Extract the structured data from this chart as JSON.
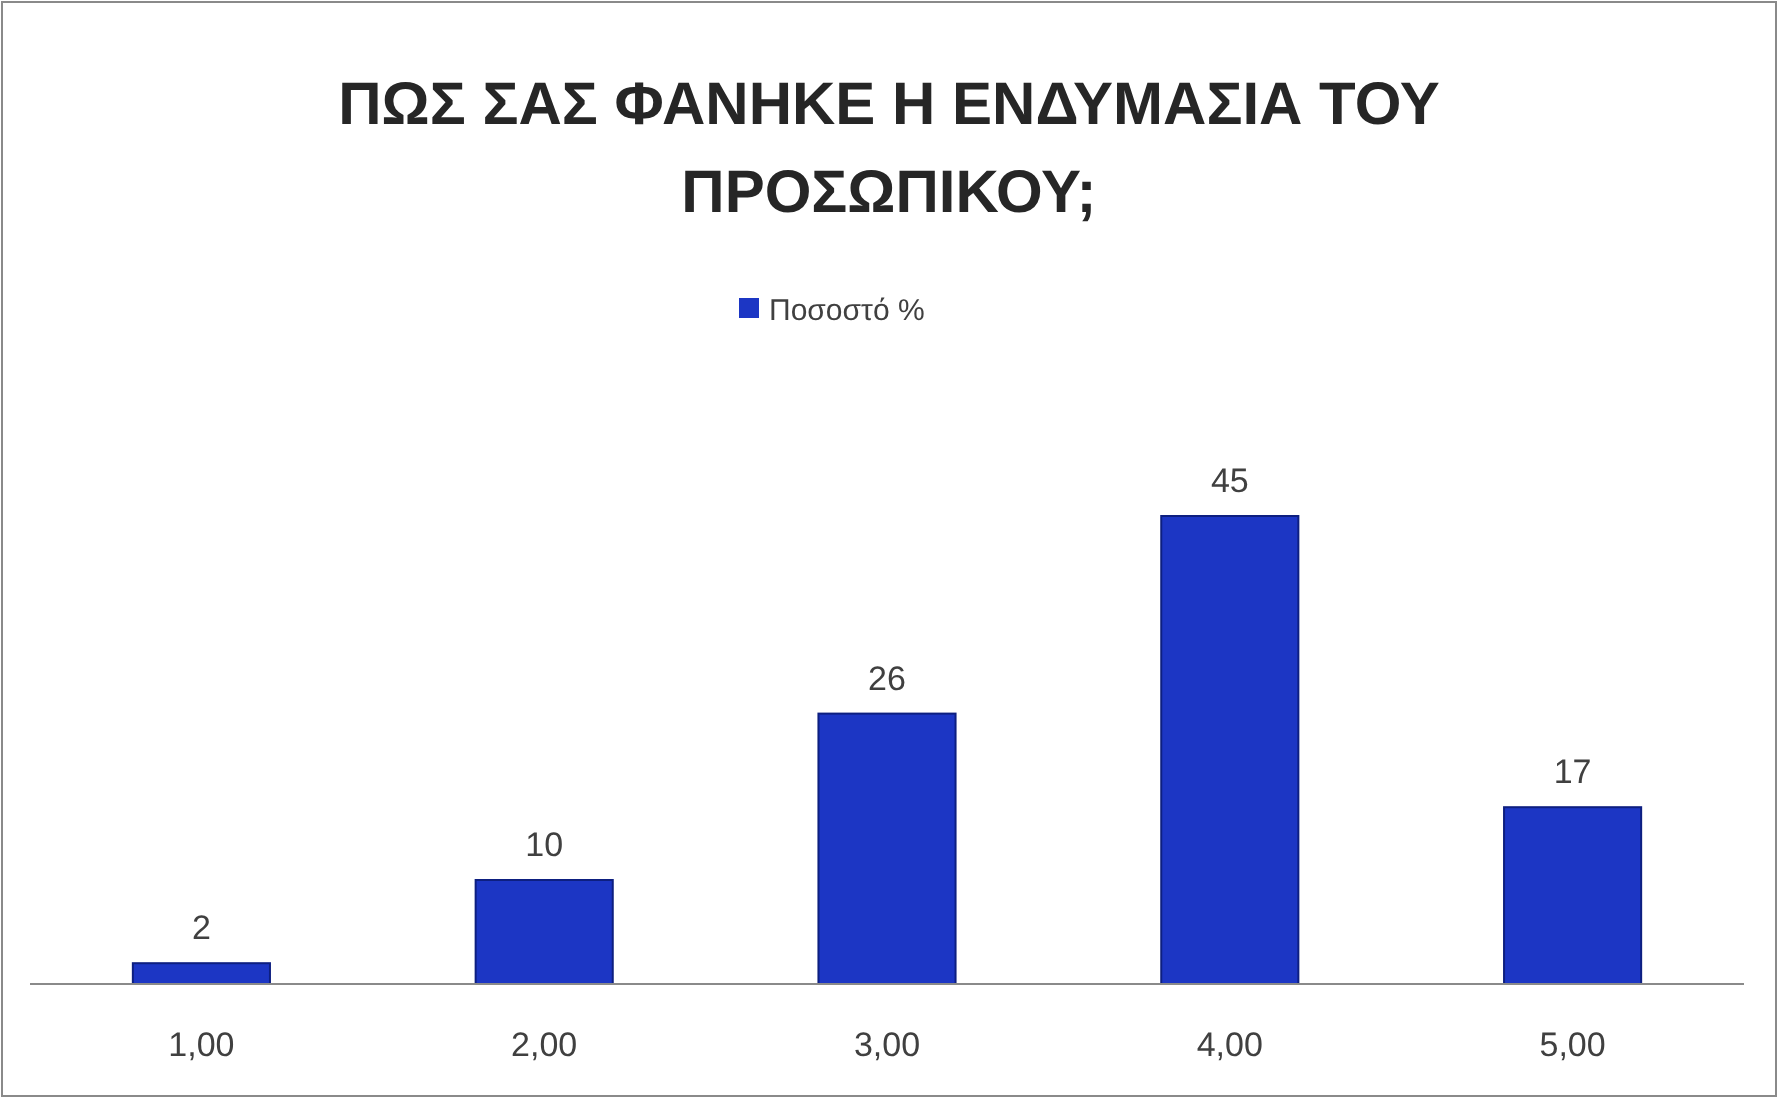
{
  "chart_data": {
    "type": "bar",
    "title": "ΠΩΣ ΣΑΣ ΦΑΝΗΚΕ Η ΕΝΔΥΜΑΣΙΑ ΤΟΥ ΠΡΟΣΩΠΙΚΟΥ;",
    "categories": [
      "1,00",
      "2,00",
      "3,00",
      "4,00",
      "5,00"
    ],
    "series": [
      {
        "name": "Ποσοστό %",
        "color": "#1c36c4",
        "values": [
          2,
          10,
          26,
          45,
          17
        ]
      }
    ],
    "data_labels": true,
    "legend": "top",
    "grid": false
  }
}
